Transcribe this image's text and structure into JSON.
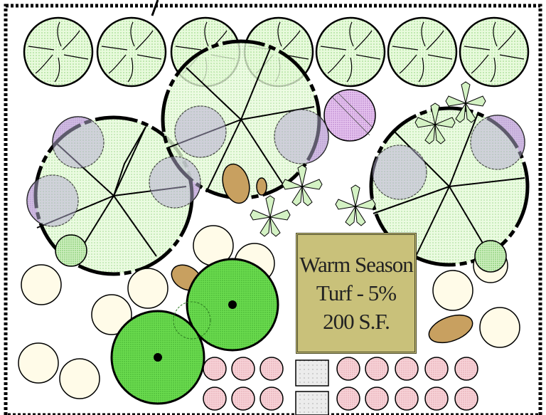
{
  "turf_label": {
    "line1": "Warm Season",
    "line2": "Turf - 5%",
    "line3": "200 S.F."
  },
  "colors": {
    "canopy_fill": "#c9f0b8",
    "canopy_stroke": "#000000",
    "shrub_fill": "#ddf5d0",
    "accent_purple": "#d9a8e6",
    "bright_green": "#5fd44a",
    "rose": "#f2c6cc",
    "turf_box": "#c9c17a",
    "rock": "#c8a060",
    "paver": "#e0e0e0"
  }
}
